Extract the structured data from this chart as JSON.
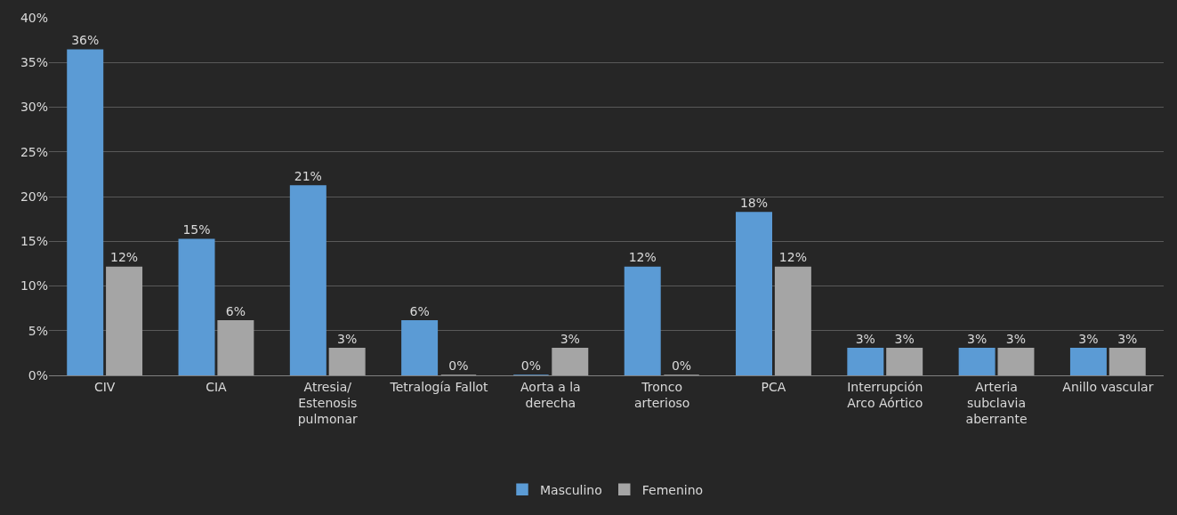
{
  "chart_data": {
    "type": "bar",
    "categories": [
      "CIV",
      "CIA",
      "Atresia/\nEstenosis\npulmonar",
      "Tetralogía Fallot",
      "Aorta a la\nderecha",
      "Tronco\narterioso",
      "PCA",
      "Interrupción\nArco Aórtico",
      "Arteria\nsubclavia\naberrante",
      "Anillo vascular"
    ],
    "series": [
      {
        "name": "Masculino",
        "color": "#5b9bd5",
        "values": [
          36.4,
          15.2,
          21.2,
          6.1,
          0,
          12.1,
          18.2,
          3.0,
          3.0,
          3.0
        ],
        "value_labels": [
          "36%",
          "15%",
          "21%",
          "6%",
          "0%",
          "12%",
          "18%",
          "3%",
          "3%",
          "3%"
        ]
      },
      {
        "name": "Femenino",
        "color": "#a5a5a5",
        "values": [
          12.1,
          6.1,
          3.0,
          0,
          3.0,
          0,
          12.1,
          3.0,
          3.0,
          3.0
        ],
        "value_labels": [
          "12%",
          "6%",
          "3%",
          "0%",
          "3%",
          "0%",
          "12%",
          "3%",
          "3%",
          "3%"
        ]
      }
    ],
    "ylim": [
      0,
      40
    ],
    "yticks": [
      {
        "value": 0,
        "label": "0%"
      },
      {
        "value": 5,
        "label": "5%"
      },
      {
        "value": 10,
        "label": "10%"
      },
      {
        "value": 15,
        "label": "15%"
      },
      {
        "value": 20,
        "label": "20%"
      },
      {
        "value": 25,
        "label": "25%"
      },
      {
        "value": 30,
        "label": "30%"
      },
      {
        "value": 35,
        "label": "35%"
      },
      {
        "value": 40,
        "label": "40%"
      }
    ],
    "grid": "y",
    "legend": "bottom"
  }
}
